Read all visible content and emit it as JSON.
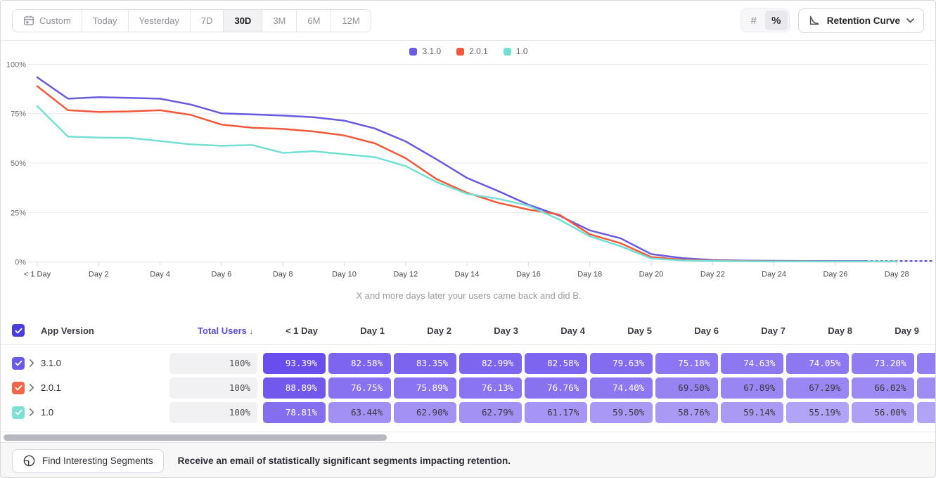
{
  "toolbar": {
    "date_ranges": [
      "Custom",
      "Today",
      "Yesterday",
      "7D",
      "30D",
      "3M",
      "6M",
      "12M"
    ],
    "selected_range": "30D",
    "format_toggle": {
      "number_label": "#",
      "percent_label": "%",
      "selected": "%"
    },
    "view_selector_label": "Retention Curve"
  },
  "chart_data": {
    "type": "line",
    "title": "",
    "caption": "X and more days later your users came back and did B.",
    "xlabel": "",
    "ylabel": "",
    "ylim": [
      0,
      100
    ],
    "xlim_days": [
      0,
      29.3
    ],
    "grid": "horizontal",
    "legend_position": "top-center",
    "y_ticks": [
      {
        "value": 0,
        "label": "0%"
      },
      {
        "value": 25,
        "label": "25%"
      },
      {
        "value": 50,
        "label": "50%"
      },
      {
        "value": 75,
        "label": "75%"
      },
      {
        "value": 100,
        "label": "100%"
      }
    ],
    "x_ticks": [
      {
        "day": 0,
        "label": "< 1 Day"
      },
      {
        "day": 2,
        "label": "Day 2"
      },
      {
        "day": 4,
        "label": "Day 4"
      },
      {
        "day": 6,
        "label": "Day 6"
      },
      {
        "day": 8,
        "label": "Day 8"
      },
      {
        "day": 10,
        "label": "Day 10"
      },
      {
        "day": 12,
        "label": "Day 12"
      },
      {
        "day": 14,
        "label": "Day 14"
      },
      {
        "day": 16,
        "label": "Day 16"
      },
      {
        "day": 18,
        "label": "Day 18"
      },
      {
        "day": 20,
        "label": "Day 20"
      },
      {
        "day": 22,
        "label": "Day 22"
      },
      {
        "day": 24,
        "label": "Day 24"
      },
      {
        "day": 26,
        "label": "Day 26"
      },
      {
        "day": 28,
        "label": "Day 28"
      }
    ],
    "series": [
      {
        "name": "3.1.0",
        "color": "#6A5AE0",
        "dash_from_day": 27,
        "values": [
          93.39,
          82.58,
          83.35,
          82.99,
          82.58,
          79.63,
          75.18,
          74.63,
          74.05,
          73.2,
          71.5,
          67.5,
          61,
          52,
          42.5,
          36,
          29,
          23.5,
          16,
          12,
          4,
          2,
          1,
          0.7,
          0.6,
          0.5,
          0.5,
          0.5,
          0.5,
          0.5
        ]
      },
      {
        "name": "2.0.1",
        "color": "#F2593B",
        "dash_from_day": null,
        "values": [
          88.89,
          76.75,
          75.89,
          76.13,
          76.76,
          74.4,
          69.5,
          67.89,
          67.29,
          66.02,
          64,
          60,
          52.5,
          42,
          35,
          30,
          26.5,
          24,
          14,
          9.5,
          2.5,
          1.2,
          0.7,
          0.5,
          0.4,
          0.4,
          0.3,
          0.3,
          0.3,
          0.3
        ]
      },
      {
        "name": "1.0",
        "color": "#74DFD3",
        "dash_from_day": null,
        "values": [
          78.81,
          63.44,
          62.9,
          62.79,
          61.17,
          59.5,
          58.76,
          59.14,
          55.19,
          56,
          54.5,
          53,
          48.5,
          40.5,
          34.5,
          32,
          28.5,
          21.5,
          13,
          8,
          1.8,
          0.8,
          0.5,
          0.4,
          0.3,
          0.3,
          0.3,
          0.3,
          0.3,
          0.3
        ]
      }
    ]
  },
  "table": {
    "select_all_checked": true,
    "entity_header": "App Version",
    "total_header": "Total Users",
    "sort_indicator": "↓",
    "day_headers": [
      "< 1 Day",
      "Day 1",
      "Day 2",
      "Day 3",
      "Day 4",
      "Day 5",
      "Day 6",
      "Day 7",
      "Day 8",
      "Day 9"
    ],
    "rows": [
      {
        "name": "3.1.0",
        "checkbox_color": "#6A5AE8",
        "checked": true,
        "total": "100%",
        "cells": [
          "93.39%",
          "82.58%",
          "83.35%",
          "82.99%",
          "82.58%",
          "79.63%",
          "75.18%",
          "74.63%",
          "74.05%",
          "73.20%"
        ]
      },
      {
        "name": "2.0.1",
        "checkbox_color": "#F4664A",
        "checked": true,
        "total": "100%",
        "cells": [
          "88.89%",
          "76.75%",
          "75.89%",
          "76.13%",
          "76.76%",
          "74.40%",
          "69.50%",
          "67.89%",
          "67.29%",
          "66.02%"
        ]
      },
      {
        "name": "1.0",
        "checkbox_color": "#7DE0D3",
        "checked": true,
        "total": "100%",
        "cells": [
          "78.81%",
          "63.44%",
          "62.90%",
          "62.79%",
          "61.17%",
          "59.50%",
          "58.76%",
          "59.14%",
          "55.19%",
          "56.00%"
        ]
      }
    ]
  },
  "footer": {
    "button_label": "Find Interesting Segments",
    "message": "Receive an email of statistically significant segments impacting retention."
  },
  "colors": {
    "accent_purple": "#5B4DE0",
    "select_all_checkbox": "#4A3FDD",
    "cell_base_rgb": "93,62,235",
    "cell_dark_text": "#3a3a41",
    "cell_light_text": "#ffffff",
    "grid_line": "#e9e9ed",
    "axis_label": "#6e6e78",
    "x_label": "#4c4c54"
  }
}
